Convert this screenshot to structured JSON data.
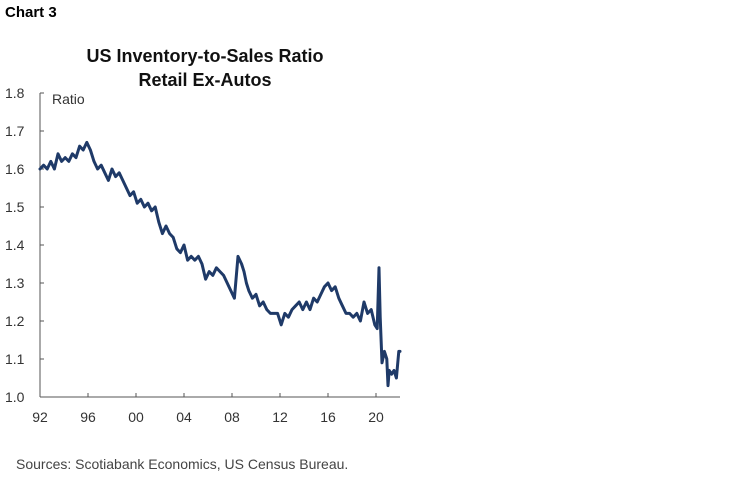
{
  "chart_label": "Chart 3",
  "source_text": "Sources: Scotiabank Economics, US Census Bureau.",
  "chart_data": {
    "type": "line",
    "title": [
      "US Inventory-to-Sales Ratio",
      "Retail Ex-Autos"
    ],
    "ylabel": "Ratio",
    "xlabel": "",
    "ylim": [
      1.0,
      1.8
    ],
    "yticks": [
      "1.0",
      "1.1",
      "1.2",
      "1.3",
      "1.4",
      "1.5",
      "1.6",
      "1.7",
      "1.8"
    ],
    "xlim": [
      1992,
      2022
    ],
    "xticks": [
      "92",
      "96",
      "00",
      "04",
      "08",
      "12",
      "16",
      "20"
    ],
    "grid": false,
    "line_color": "#1f3a68",
    "series": [
      {
        "x": [
          1992.0,
          1992.3,
          1992.6,
          1992.9,
          1993.2,
          1993.5,
          1993.8,
          1994.1,
          1994.4,
          1994.7,
          1995.0,
          1995.3,
          1995.6,
          1995.9,
          1996.2,
          1996.5,
          1996.8,
          1997.1,
          1997.4,
          1997.7,
          1998.0,
          1998.3,
          1998.6,
          1998.9,
          1999.2,
          1999.5,
          1999.8,
          2000.1,
          2000.4,
          2000.7,
          2001.0,
          2001.3,
          2001.6,
          2001.9,
          2002.2,
          2002.5,
          2002.8,
          2003.1,
          2003.4,
          2003.7,
          2004.0,
          2004.3,
          2004.6,
          2004.9,
          2005.2,
          2005.5,
          2005.8,
          2006.1,
          2006.4,
          2006.7,
          2007.0,
          2007.3,
          2007.6,
          2007.9,
          2008.2,
          2008.5,
          2008.8,
          2009.0,
          2009.2,
          2009.4,
          2009.7,
          2010.0,
          2010.3,
          2010.6,
          2010.9,
          2011.2,
          2011.5,
          2011.8,
          2012.1,
          2012.4,
          2012.7,
          2013.0,
          2013.3,
          2013.6,
          2013.9,
          2014.2,
          2014.5,
          2014.8,
          2015.1,
          2015.4,
          2015.7,
          2016.0,
          2016.3,
          2016.6,
          2016.9,
          2017.2,
          2017.5,
          2017.8,
          2018.1,
          2018.4,
          2018.7,
          2019.0,
          2019.3,
          2019.6,
          2019.9,
          2020.1,
          2020.25,
          2020.35,
          2020.5,
          2020.7,
          2020.9,
          2021.0,
          2021.1,
          2021.3,
          2021.5,
          2021.7,
          2021.9,
          2022.0
        ],
        "values": [
          1.6,
          1.61,
          1.6,
          1.62,
          1.6,
          1.64,
          1.62,
          1.63,
          1.62,
          1.64,
          1.63,
          1.66,
          1.65,
          1.67,
          1.65,
          1.62,
          1.6,
          1.61,
          1.59,
          1.57,
          1.6,
          1.58,
          1.59,
          1.57,
          1.55,
          1.53,
          1.54,
          1.51,
          1.52,
          1.5,
          1.51,
          1.49,
          1.5,
          1.46,
          1.43,
          1.45,
          1.43,
          1.42,
          1.39,
          1.38,
          1.4,
          1.36,
          1.37,
          1.36,
          1.37,
          1.35,
          1.31,
          1.33,
          1.32,
          1.34,
          1.33,
          1.32,
          1.3,
          1.28,
          1.26,
          1.37,
          1.35,
          1.33,
          1.3,
          1.28,
          1.26,
          1.27,
          1.24,
          1.25,
          1.23,
          1.22,
          1.22,
          1.22,
          1.19,
          1.22,
          1.21,
          1.23,
          1.24,
          1.25,
          1.23,
          1.25,
          1.23,
          1.26,
          1.25,
          1.27,
          1.29,
          1.3,
          1.28,
          1.29,
          1.26,
          1.24,
          1.22,
          1.22,
          1.21,
          1.22,
          1.2,
          1.25,
          1.22,
          1.23,
          1.19,
          1.18,
          1.34,
          1.21,
          1.09,
          1.12,
          1.1,
          1.03,
          1.07,
          1.06,
          1.07,
          1.05,
          1.12,
          1.12
        ]
      }
    ]
  }
}
